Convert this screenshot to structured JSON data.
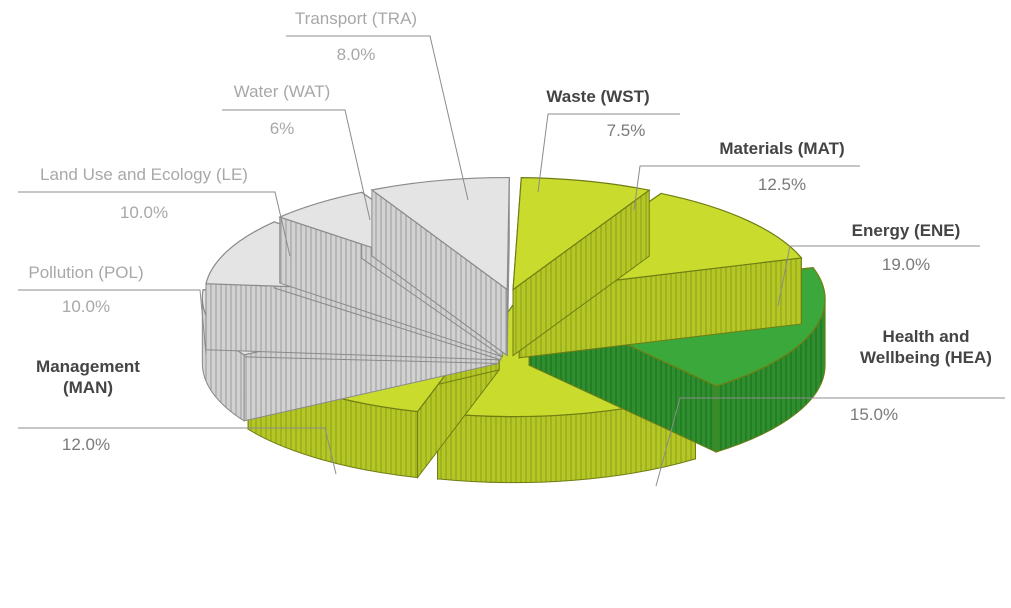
{
  "chart_data": {
    "type": "pie",
    "title": "",
    "slices": [
      {
        "name": "Waste (WST)",
        "label": "7.5%",
        "value": 7.5,
        "highlighted": true,
        "color": "#c9dc2e"
      },
      {
        "name": "Materials (MAT)",
        "label": "12.5%",
        "value": 12.5,
        "highlighted": true,
        "color": "#c9dc2e"
      },
      {
        "name": "Energy (ENE)",
        "label": "19.0%",
        "value": 19.0,
        "highlighted": true,
        "color": "#3aa83a"
      },
      {
        "name": "Health and Wellbeing (HEA)",
        "label": "15.0%",
        "value": 15.0,
        "highlighted": true,
        "color": "#c9dc2e"
      },
      {
        "name": "Management (MAN)",
        "label": "12.0%",
        "value": 12.0,
        "highlighted": true,
        "color": "#c9dc2e"
      },
      {
        "name": "Pollution (POL)",
        "label": "10.0%",
        "value": 10.0,
        "highlighted": false,
        "color": "#e4e4e4"
      },
      {
        "name": "Land Use and Ecology (LE)",
        "label": "10.0%",
        "value": 10.0,
        "highlighted": false,
        "color": "#e4e4e4"
      },
      {
        "name": "Water (WAT)",
        "label": "6%",
        "value": 6.0,
        "highlighted": false,
        "color": "#e4e4e4"
      },
      {
        "name": "Transport (TRA)",
        "label": "8.0%",
        "value": 8.0,
        "highlighted": false,
        "color": "#e4e4e4"
      }
    ]
  }
}
